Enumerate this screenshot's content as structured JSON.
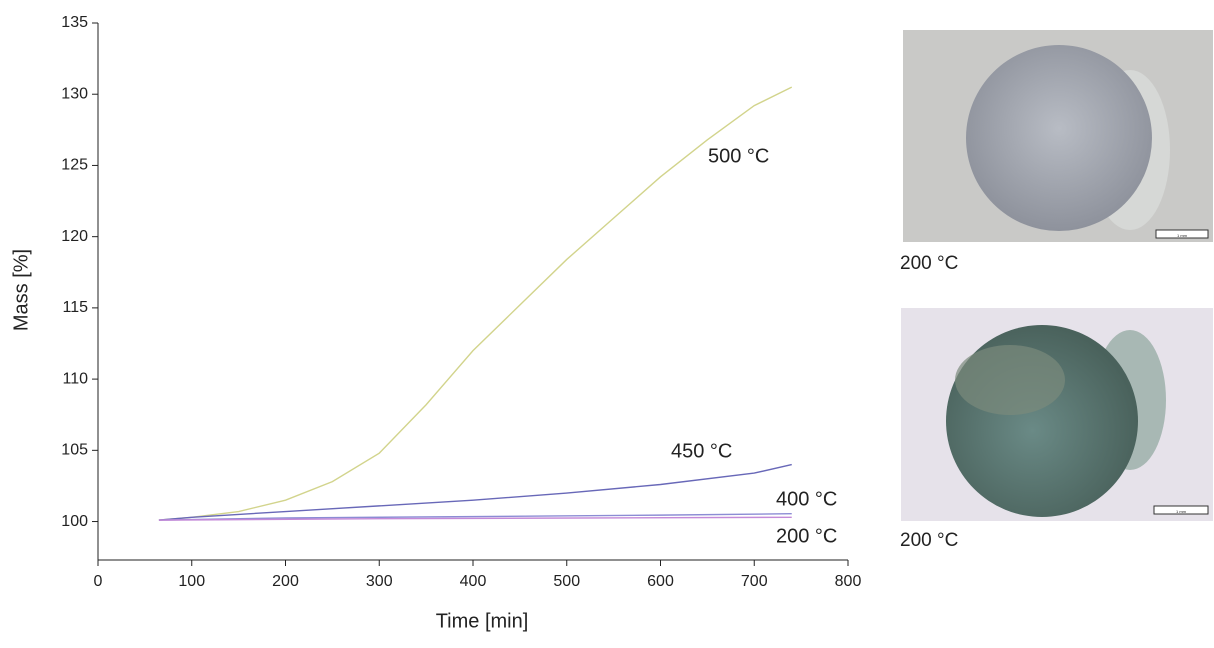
{
  "chart_data": {
    "type": "line",
    "x_label": "Time [min]",
    "y_label": "Mass [%]",
    "xlim": [
      0,
      800
    ],
    "xticks": [
      0,
      100,
      200,
      300,
      400,
      500,
      600,
      700,
      800
    ],
    "ylim": [
      97.3,
      135
    ],
    "yticks": [
      100,
      105,
      110,
      115,
      120,
      125,
      130,
      135
    ],
    "series": [
      {
        "name": "500 °C",
        "color": "#d2d48c",
        "x": [
          65,
          100,
          150,
          200,
          250,
          300,
          350,
          400,
          450,
          500,
          550,
          600,
          650,
          700,
          740
        ],
        "values": [
          100.1,
          100.3,
          100.7,
          101.5,
          102.8,
          104.8,
          108.2,
          112,
          115.2,
          118.4,
          121.3,
          124.2,
          126.8,
          129.2,
          130.5
        ]
      },
      {
        "name": "450 °C",
        "color": "#6868b8",
        "x": [
          65,
          100,
          200,
          300,
          400,
          500,
          600,
          700,
          740
        ],
        "values": [
          100.1,
          100.3,
          100.7,
          101.1,
          101.5,
          102,
          102.6,
          103.4,
          104
        ]
      },
      {
        "name": "400 °C",
        "color": "#8c8cd4",
        "x": [
          65,
          200,
          400,
          600,
          740
        ],
        "values": [
          100.1,
          100.25,
          100.35,
          100.45,
          100.55
        ]
      },
      {
        "name": "200 °C",
        "color": "#c48ad8",
        "x": [
          65,
          300,
          740
        ],
        "values": [
          100.1,
          100.2,
          100.3
        ]
      }
    ]
  },
  "panels": [
    {
      "caption": "200 °C",
      "scale_label": "1 mm"
    },
    {
      "caption": "200 °C",
      "scale_label": "1 mm"
    }
  ]
}
